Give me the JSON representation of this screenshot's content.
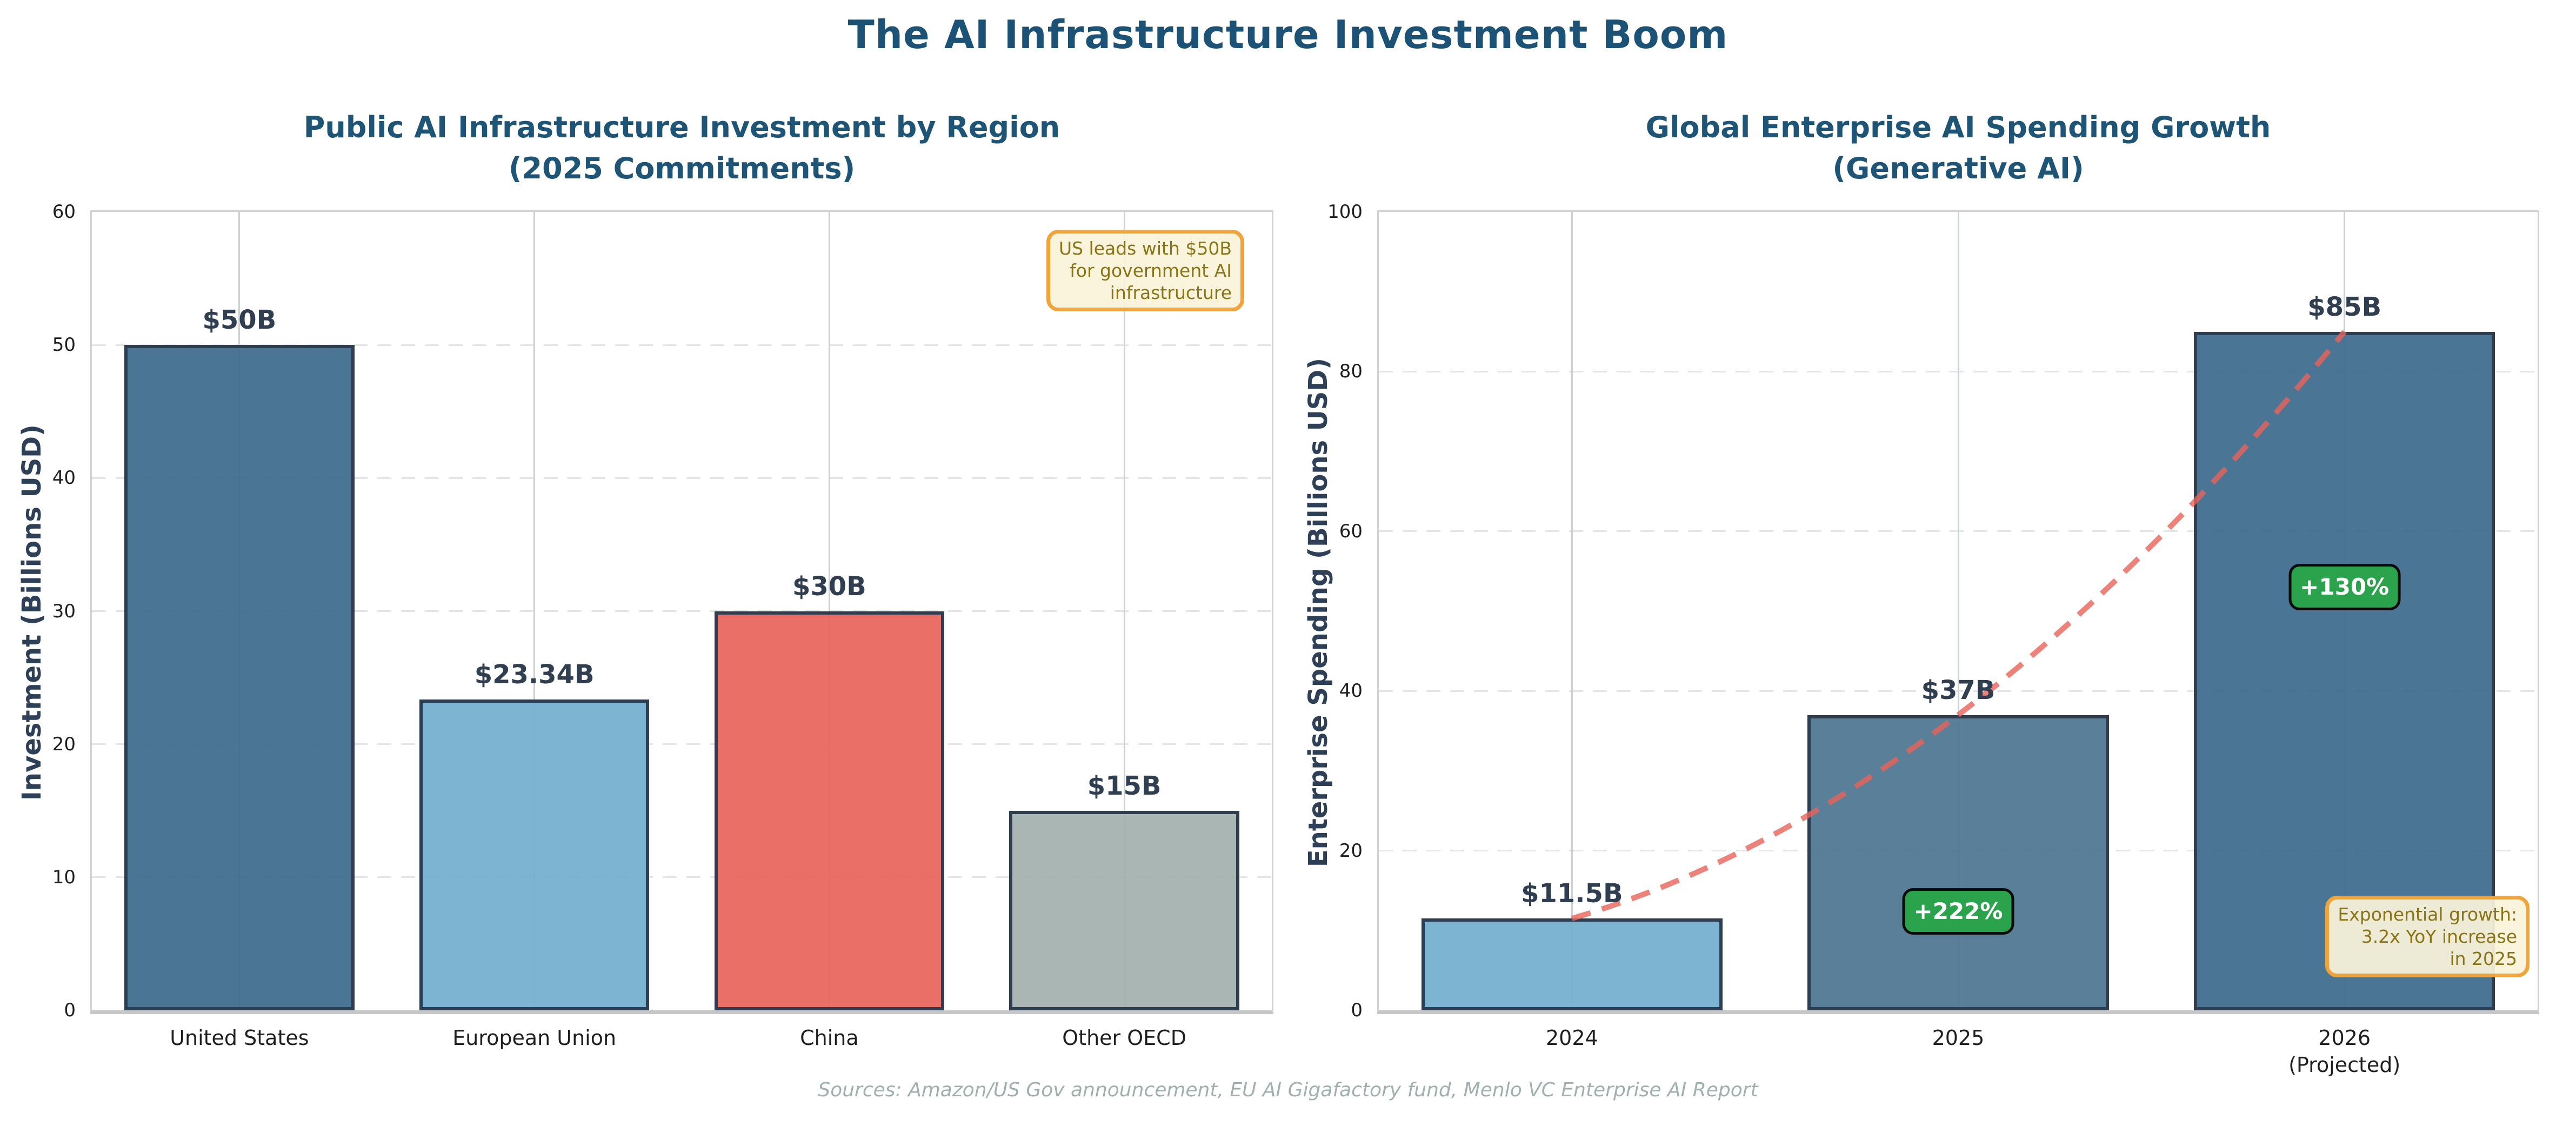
{
  "figure": {
    "title": "The AI Infrastructure Investment Boom",
    "footer": "Sources: Amazon/US Gov announcement, EU AI Gigafactory fund, Menlo VC Enterprise AI Report",
    "background": "#ffffff",
    "title_color": "#1c5276"
  },
  "chart_data": [
    {
      "type": "bar",
      "title": "Public AI Infrastructure Investment by Region\n(2025 Commitments)",
      "ylabel": "Investment (Billions USD)",
      "xlabel": "",
      "ylim": [
        0,
        60
      ],
      "yticks": [
        0,
        10,
        20,
        30,
        40,
        50,
        60
      ],
      "grid": "horizontal-dashed and vertical-solid, light gray",
      "legend": "none",
      "categories": [
        "United States",
        "European Union",
        "China",
        "Other OECD"
      ],
      "values": [
        50,
        23.34,
        30,
        15
      ],
      "value_labels": [
        "$50B",
        "$23.34B",
        "$30B",
        "$15B"
      ],
      "bar_colors": [
        "#3d6b8c",
        "#72aecd",
        "#e8645a",
        "#a4b0ae"
      ],
      "bar_edge_color": "#2e3d4f",
      "annotation": "US leads with $50B\nfor government AI\ninfrastructure",
      "annotation_colors": {
        "text": "#8a7415",
        "background": "#faf3da",
        "border": "#f0a43a"
      }
    },
    {
      "type": "bar",
      "title": "Global Enterprise AI Spending Growth\n(Generative AI)",
      "ylabel": "Enterprise Spending (Billions USD)",
      "xlabel": "",
      "ylim": [
        0,
        100
      ],
      "yticks": [
        0,
        20,
        40,
        60,
        80,
        100
      ],
      "grid": "horizontal-dashed and vertical-solid, light gray",
      "legend": "none",
      "categories": [
        "2024",
        "2025",
        "2026\n(Projected)"
      ],
      "values": [
        11.5,
        37,
        85
      ],
      "value_labels": [
        "$11.5B",
        "$37B",
        "$85B"
      ],
      "bar_colors": [
        "#72aecd",
        "#4c7690",
        "#3d6b8c"
      ],
      "bar_edge_color": "#2e3d4f",
      "growth_badges": [
        {
          "label": "+222%",
          "category_index": 1,
          "y_value": 12.4,
          "background": "#2aa34c",
          "text_color": "#ffffff"
        },
        {
          "label": "+130%",
          "category_index": 2,
          "y_value": 53,
          "background": "#2aa34c",
          "text_color": "#ffffff"
        }
      ],
      "trend_line": {
        "style": "dashed",
        "color": "#e8635a",
        "x": [
          "2024",
          "2025",
          "2026"
        ],
        "values": [
          11.5,
          37,
          85
        ]
      },
      "annotation": "Exponential growth:\n3.2x YoY increase\nin 2025",
      "annotation_colors": {
        "text": "#8a7415",
        "background": "#faf3da",
        "border": "#f0a43a"
      }
    }
  ]
}
